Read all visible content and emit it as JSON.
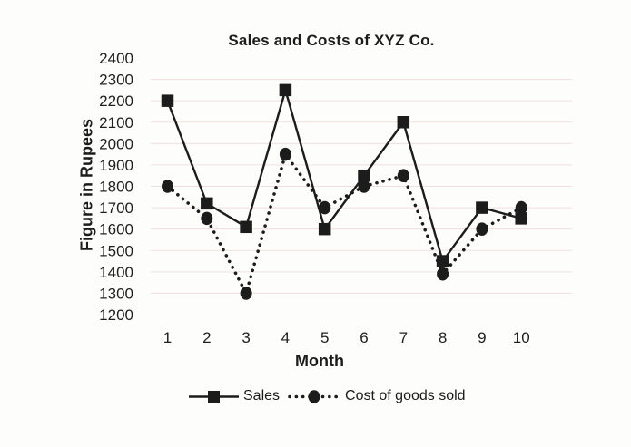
{
  "chart_data": {
    "type": "line",
    "title": "Sales and Costs of XYZ Co.",
    "x": [
      "1",
      "2",
      "3",
      "4",
      "5",
      "6",
      "7",
      "8",
      "9",
      "10"
    ],
    "xlabel": "Month",
    "ylabel": "Figure in Rupees",
    "ylim": [
      1200,
      2400
    ],
    "yticks": [
      2400,
      2300,
      2200,
      2100,
      2000,
      1900,
      1800,
      1700,
      1600,
      1500,
      1400,
      1300,
      1200
    ],
    "grid": "faint horizontal gridlines every 100",
    "legend_position": "bottom-center",
    "series": [
      {
        "name": "Sales",
        "line": "solid",
        "marker": "square",
        "color": "#1c1c1c",
        "values": [
          2200,
          1720,
          1610,
          2250,
          1600,
          1850,
          2100,
          1450,
          1700,
          1650
        ]
      },
      {
        "name": "Cost of goods sold",
        "line": "dotted",
        "marker": "circle",
        "color": "#1c1c1c",
        "values": [
          1800,
          1650,
          1300,
          1950,
          1700,
          1800,
          1850,
          1390,
          1600,
          1700
        ]
      }
    ]
  },
  "colors": {
    "ink": "#1c1c1c",
    "gridline": "#f0dfde",
    "background": "#fdfdfb"
  }
}
